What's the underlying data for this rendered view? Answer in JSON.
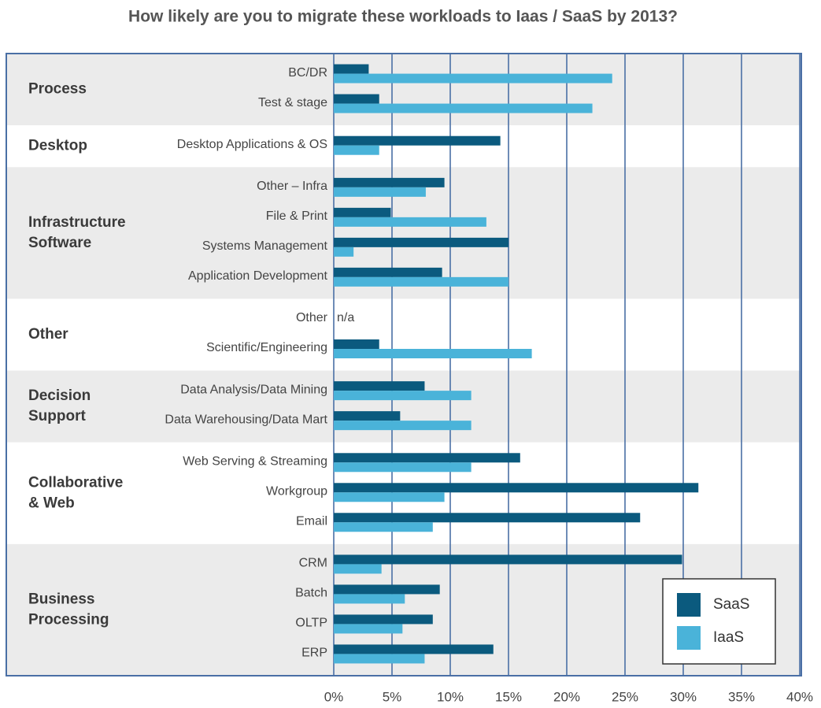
{
  "chart_data": {
    "type": "hbar",
    "title": "How likely are you to migrate these workloads to Iaas / SaaS by 2013?",
    "categories": [
      "BC/DR",
      "Test & stage",
      "Desktop Applications & OS",
      "Other – Infra",
      "File & Print",
      "Systems Management",
      "Application Development",
      "Other",
      "Scientific/Engineering",
      "Data Analysis/Data Mining",
      "Data Warehousing/Data Mart",
      "Web Serving & Streaming",
      "Workgroup",
      "Email",
      "CRM",
      "Batch",
      "OLTP",
      "ERP"
    ],
    "groups": [
      {
        "name": [
          "Process"
        ],
        "count": 2
      },
      {
        "name": [
          "Desktop"
        ],
        "count": 1
      },
      {
        "name": [
          "Infrastructure",
          "Software"
        ],
        "count": 4
      },
      {
        "name": [
          "Other"
        ],
        "count": 2
      },
      {
        "name": [
          "Decision",
          "Support"
        ],
        "count": 2
      },
      {
        "name": [
          "Collaborative",
          "& Web"
        ],
        "count": 3
      },
      {
        "name": [
          "Business",
          "Processing"
        ],
        "count": 4
      }
    ],
    "series": [
      {
        "name": "SaaS",
        "color": "#0b5a7e",
        "values": [
          3.0,
          3.9,
          14.3,
          9.5,
          4.9,
          15.0,
          9.3,
          null,
          3.9,
          7.8,
          5.7,
          16.0,
          31.3,
          26.3,
          29.9,
          9.1,
          8.5,
          13.7
        ]
      },
      {
        "name": "IaaS",
        "color": "#4ab3d9",
        "values": [
          23.9,
          22.2,
          3.9,
          7.9,
          13.1,
          1.7,
          15.0,
          null,
          17.0,
          11.8,
          11.8,
          11.8,
          9.5,
          8.5,
          4.1,
          6.1,
          5.9,
          7.8
        ]
      }
    ],
    "annotations": [
      {
        "text": "n/a",
        "index": 7
      }
    ],
    "xlim": [
      0,
      40
    ],
    "xticks": [
      {
        "value": 0,
        "label": "0%"
      },
      {
        "value": 5,
        "label": "5%"
      },
      {
        "value": 10,
        "label": "10%"
      },
      {
        "value": 15,
        "label": "15%"
      },
      {
        "value": 20,
        "label": "20%"
      },
      {
        "value": 25,
        "label": "25%"
      },
      {
        "value": 30,
        "label": "30%"
      },
      {
        "value": 35,
        "label": "35%"
      },
      {
        "value": 40,
        "label": "40%"
      }
    ],
    "grid": true,
    "legend": "lower right"
  }
}
